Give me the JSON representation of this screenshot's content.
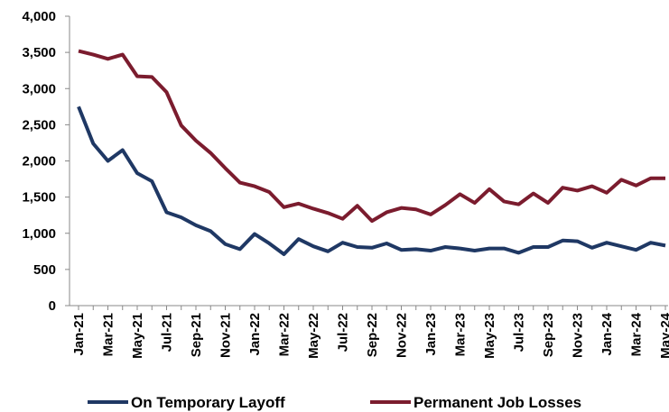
{
  "chart_data": {
    "type": "line",
    "categories": [
      "Jan-21",
      null,
      "Mar-21",
      null,
      "May-21",
      null,
      "Jul-21",
      null,
      "Sep-21",
      null,
      "Nov-21",
      null,
      "Jan-22",
      null,
      "Mar-22",
      null,
      "May-22",
      null,
      "Jul-22",
      null,
      "Sep-22",
      null,
      "Nov-22",
      null,
      "Jan-23",
      null,
      "Mar-23",
      null,
      "May-23",
      null,
      "Jul-23",
      null,
      "Sep-23",
      null,
      "Nov-23",
      null,
      "Jan-24",
      null,
      "Mar-24",
      null,
      "May-24"
    ],
    "series": [
      {
        "name": "On Temporary Layoff",
        "color": "#1f3864",
        "values": [
          2750,
          2240,
          2000,
          2150,
          1830,
          1720,
          1290,
          1220,
          1110,
          1030,
          850,
          780,
          990,
          860,
          710,
          920,
          820,
          750,
          870,
          810,
          800,
          860,
          770,
          780,
          760,
          810,
          790,
          760,
          790,
          790,
          730,
          810,
          810,
          900,
          890,
          800,
          870,
          820,
          770,
          870,
          830
        ]
      },
      {
        "name": "Permanent Job Losses",
        "color": "#7b1c2e",
        "values": [
          3520,
          3470,
          3410,
          3470,
          3170,
          3160,
          2950,
          2490,
          2280,
          2110,
          1900,
          1700,
          1650,
          1570,
          1360,
          1410,
          1340,
          1280,
          1200,
          1380,
          1170,
          1290,
          1350,
          1330,
          1260,
          1390,
          1540,
          1420,
          1610,
          1440,
          1400,
          1550,
          1420,
          1630,
          1590,
          1650,
          1560,
          1740,
          1660,
          1760,
          1760
        ]
      }
    ],
    "ylim": [
      0,
      4000
    ],
    "yticks": [
      0,
      500,
      {
        "value": 1000,
        "label": "1,000"
      },
      {
        "value": 1500,
        "label": "1,500"
      },
      {
        "value": 2000,
        "label": "2,000"
      },
      {
        "value": 2500,
        "label": "2,500"
      },
      {
        "value": 3000,
        "label": "3,000"
      },
      {
        "value": 3500,
        "label": "3,500"
      },
      {
        "value": 4000,
        "label": "4,000"
      }
    ],
    "legend": "bottom"
  }
}
